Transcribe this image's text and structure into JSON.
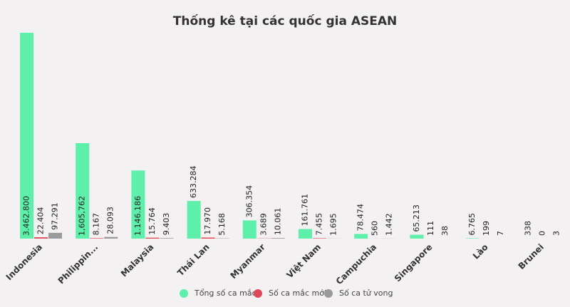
{
  "chart_data": {
    "type": "bar",
    "title": "Thống kê tại các quốc gia ASEAN",
    "categories": [
      "Indonesia",
      "Philippin...",
      "Malaysia",
      "Thái Lan",
      "Myanmar",
      "Việt Nam",
      "Campuchia",
      "Singapore",
      "Lào",
      "Brunei"
    ],
    "series": [
      {
        "name": "Tổng số ca mắc",
        "color": "#5ef0ab",
        "values": [
          3462800,
          1605762,
          1146186,
          633284,
          306354,
          161761,
          78474,
          65213,
          6765,
          338
        ],
        "value_labels": [
          "3.462.800",
          "1,605,762",
          "1.146.186",
          "633.284",
          "306.354",
          "161.761",
          "78.474",
          "65.213",
          "6.765",
          "338"
        ]
      },
      {
        "name": "Số ca mắc mới",
        "color": "#e0495a",
        "values": [
          22404,
          8167,
          15764,
          17970,
          3689,
          7455,
          560,
          111,
          199,
          0
        ],
        "value_labels": [
          "22.404",
          "8.167",
          "15.764",
          "17.970",
          "3.689",
          "7.455",
          "560",
          "111",
          "199",
          "0"
        ]
      },
      {
        "name": "Số ca tử vong",
        "color": "#9a9a9a",
        "values": [
          97291,
          28093,
          9403,
          5168,
          10061,
          1695,
          1442,
          38,
          7,
          3
        ],
        "value_labels": [
          "97.291",
          "28.093",
          "9.403",
          "5.168",
          "10.061",
          "1.695",
          "1.442",
          "38",
          "7",
          "3"
        ]
      }
    ]
  }
}
